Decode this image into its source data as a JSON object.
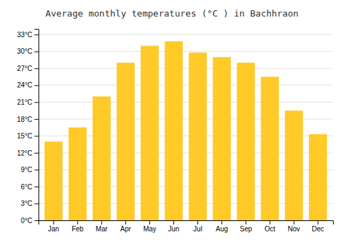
{
  "chart_data": {
    "type": "bar",
    "title": "Average monthly temperatures (°C ) in Bachhraon",
    "categories": [
      "Jan",
      "Feb",
      "Mar",
      "Apr",
      "May",
      "Jun",
      "Jul",
      "Aug",
      "Sep",
      "Oct",
      "Nov",
      "Dec"
    ],
    "values": [
      14.0,
      16.5,
      22.0,
      28.0,
      31.0,
      31.8,
      29.8,
      29.0,
      28.0,
      25.5,
      19.5,
      15.3
    ],
    "color": "#FFCA28",
    "ylim": [
      0,
      34
    ],
    "yticks": [
      {
        "value": 0,
        "label": "0°C"
      },
      {
        "value": 3,
        "label": "3°C"
      },
      {
        "value": 6,
        "label": "6°C"
      },
      {
        "value": 9,
        "label": "9°C"
      },
      {
        "value": 12,
        "label": "12°C"
      },
      {
        "value": 15,
        "label": "15°C"
      },
      {
        "value": 18,
        "label": "18°C"
      },
      {
        "value": 21,
        "label": "21°C"
      },
      {
        "value": 24,
        "label": "24°C"
      },
      {
        "value": 27,
        "label": "27°C"
      },
      {
        "value": 30,
        "label": "30°C"
      },
      {
        "value": 33,
        "label": "33°C"
      }
    ],
    "grid": true
  }
}
